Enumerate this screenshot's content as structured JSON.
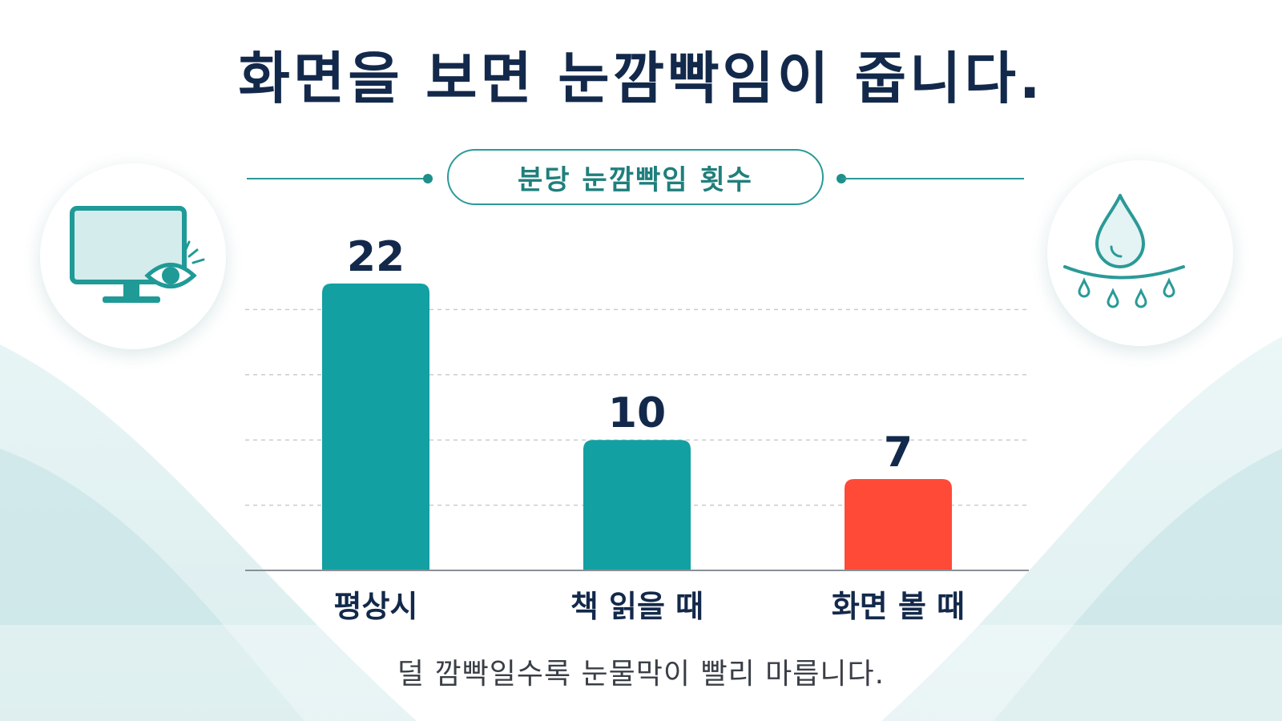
{
  "title": "화면을 보면 눈깜빡임이 줍니다.",
  "caption": "덜 깜빡일수록 눈물막이 빨리 마릅니다.",
  "icons": {
    "left": "monitor-eye-icon",
    "right": "tear-drop-icon"
  },
  "colors": {
    "title": "#13294b",
    "accent": "#2a9a98",
    "bar_default": "#12a0a2",
    "bar_highlight": "#ff4a38",
    "gridline": "#c9ccd0",
    "axis": "#8a8f96",
    "value_label": "#13294b"
  },
  "chart_data": {
    "type": "bar",
    "title": "분당 눈깜빡임 횟수",
    "categories": [
      "평상시",
      "책 읽을 때",
      "화면 볼 때"
    ],
    "values": [
      22,
      10,
      7
    ],
    "highlight_index": 2,
    "ylim": [
      0,
      25
    ],
    "grid": true,
    "data_labels": true
  }
}
